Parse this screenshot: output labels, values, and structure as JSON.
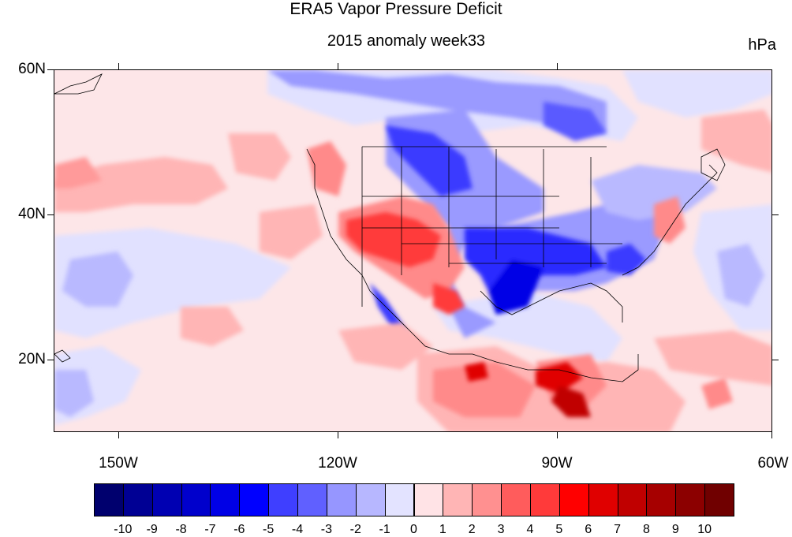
{
  "title": "ERA5 Vapor Pressure Deficit",
  "subtitle": "2015 anomaly week33",
  "units": "hPa",
  "map": {
    "lon_range": [
      -160,
      -60
    ],
    "lat_range": [
      10,
      60
    ],
    "lat_labels": [
      "60N",
      "40N",
      "20N"
    ],
    "lon_labels": [
      "150W",
      "120W",
      "90W",
      "60W"
    ]
  },
  "colorbar": {
    "labels": [
      "-10",
      "-9",
      "-8",
      "-7",
      "-6",
      "-5",
      "-4",
      "-3",
      "-2",
      "-1",
      "0",
      "1",
      "2",
      "3",
      "4",
      "5",
      "6",
      "7",
      "8",
      "9",
      "10"
    ],
    "colors": [
      "#00006e",
      "#000094",
      "#0000b2",
      "#0000cc",
      "#0000e6",
      "#0000ff",
      "#3f3fff",
      "#6060ff",
      "#9696ff",
      "#b7b7ff",
      "#e3e3ff",
      "#ffe3e6",
      "#ffb5b5",
      "#ff9090",
      "#ff5c5c",
      "#ff3a3a",
      "#ff0000",
      "#e00000",
      "#c00000",
      "#a60000",
      "#8c0000",
      "#700000"
    ]
  },
  "colors": {
    "land_outline": "#000000",
    "background": "#fde4e6"
  }
}
